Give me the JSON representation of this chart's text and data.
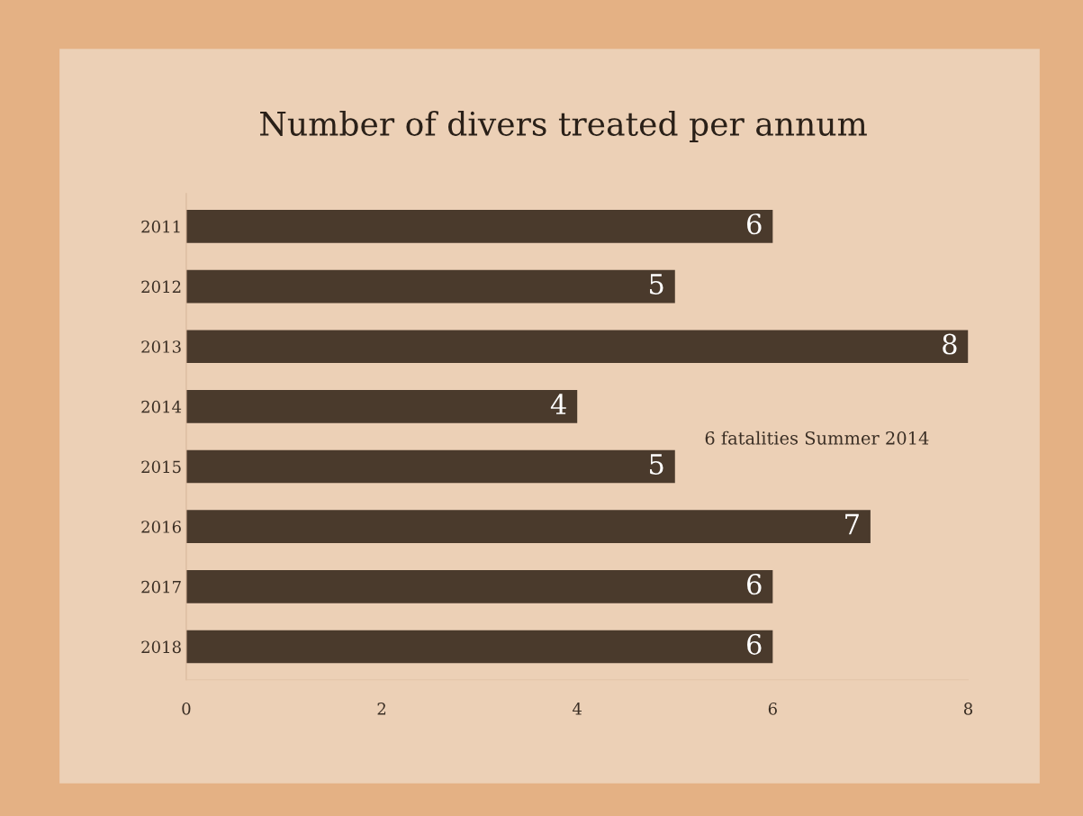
{
  "chart_data": {
    "type": "bar",
    "orientation": "horizontal",
    "title": "Number of divers treated per annum",
    "categories": [
      "2011",
      "2012",
      "2013",
      "2014",
      "2015",
      "2016",
      "2017",
      "2018"
    ],
    "values": [
      6,
      5,
      8,
      4,
      5,
      7,
      6,
      6
    ],
    "color": "#4a3a2c",
    "xlim": [
      0,
      8
    ],
    "xticks": [
      0,
      2,
      4,
      6,
      8
    ],
    "grid": false,
    "data_labels": true,
    "annotations": [
      "6 fatalities Summer 2014"
    ]
  }
}
